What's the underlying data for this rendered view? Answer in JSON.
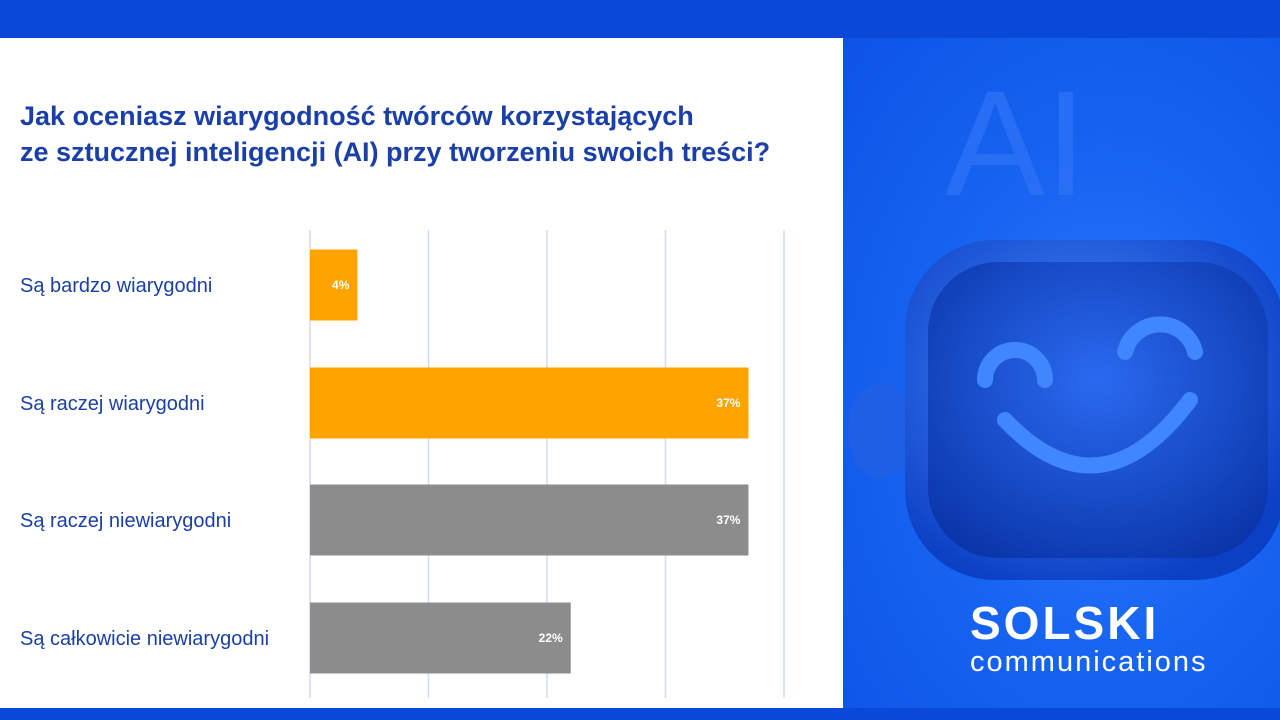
{
  "chart_data": {
    "type": "bar",
    "orientation": "horizontal",
    "title": "Jak oceniasz wiarygodność twórców korzystających ze sztucznej inteligencji (AI) przy tworzeniu swoich treści?",
    "title_lines": [
      "Jak oceniasz wiarygodność twórców korzystających",
      "ze sztucznej inteligencji (AI) przy tworzeniu swoich treści?"
    ],
    "categories": [
      "Są bardzo wiarygodni",
      "Są raczej wiarygodni",
      "Są raczej niewiarygodni",
      "Są całkowicie niewiarygodni"
    ],
    "values": [
      4,
      37,
      37,
      22
    ],
    "value_labels": [
      "4%",
      "37%",
      "37%",
      "22%"
    ],
    "bar_colors": [
      "#ffa300",
      "#ffa300",
      "#8c8c8c",
      "#8c8c8c"
    ],
    "xlim": [
      0,
      40
    ],
    "unit": "%",
    "grid": true,
    "legend": "none"
  },
  "artwork": {
    "ai_text": "AI"
  },
  "logo": {
    "name": "SOLSKI",
    "subtitle": "communications"
  },
  "colors": {
    "brand_blue": "#0a49d8",
    "title_blue": "#1a3fa8",
    "orange": "#ffa300",
    "gray": "#8c8c8c"
  }
}
